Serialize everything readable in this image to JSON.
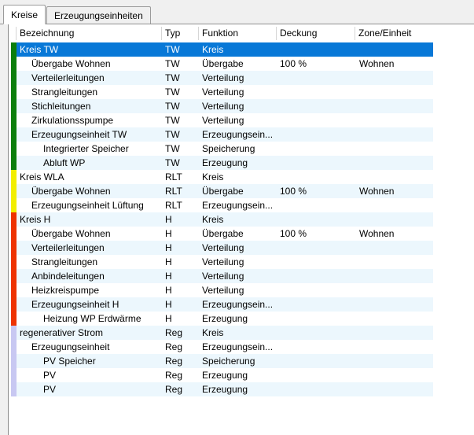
{
  "tabs": [
    {
      "label": "Kreise",
      "active": true
    },
    {
      "label": "Erzeugungseinheiten",
      "active": false
    }
  ],
  "table": {
    "columns": {
      "bezeichnung": "Bezeichnung",
      "typ": "Typ",
      "funktion": "Funktion",
      "deckung": "Deckung",
      "zone": "Zone/Einheit"
    },
    "rows": [
      {
        "bezeichnung": "Kreis TW",
        "typ": "TW",
        "funktion": "Kreis",
        "deckung": "",
        "zone": "",
        "level": 0,
        "group": "tw",
        "selected": true
      },
      {
        "bezeichnung": "Übergabe Wohnen",
        "typ": "TW",
        "funktion": "Übergabe",
        "deckung": "100 %",
        "zone": "Wohnen",
        "level": 1,
        "group": "tw"
      },
      {
        "bezeichnung": "Verteilerleitungen",
        "typ": "TW",
        "funktion": "Verteilung",
        "deckung": "",
        "zone": "",
        "level": 1,
        "group": "tw"
      },
      {
        "bezeichnung": "Strangleitungen",
        "typ": "TW",
        "funktion": "Verteilung",
        "deckung": "",
        "zone": "",
        "level": 1,
        "group": "tw"
      },
      {
        "bezeichnung": "Stichleitungen",
        "typ": "TW",
        "funktion": "Verteilung",
        "deckung": "",
        "zone": "",
        "level": 1,
        "group": "tw"
      },
      {
        "bezeichnung": "Zirkulationsspumpe",
        "typ": "TW",
        "funktion": "Verteilung",
        "deckung": "",
        "zone": "",
        "level": 1,
        "group": "tw"
      },
      {
        "bezeichnung": "Erzeugungseinheit TW",
        "typ": "TW",
        "funktion": "Erzeugungsein...",
        "deckung": "",
        "zone": "",
        "level": 1,
        "group": "tw"
      },
      {
        "bezeichnung": "Integrierter Speicher",
        "typ": "TW",
        "funktion": "Speicherung",
        "deckung": "",
        "zone": "",
        "level": 2,
        "group": "tw"
      },
      {
        "bezeichnung": "Abluft WP",
        "typ": "TW",
        "funktion": "Erzeugung",
        "deckung": "",
        "zone": "",
        "level": 2,
        "group": "tw"
      },
      {
        "bezeichnung": "Kreis WLA",
        "typ": "RLT",
        "funktion": "Kreis",
        "deckung": "",
        "zone": "",
        "level": 0,
        "group": "rlt"
      },
      {
        "bezeichnung": "Übergabe Wohnen",
        "typ": "RLT",
        "funktion": "Übergabe",
        "deckung": "100 %",
        "zone": "Wohnen",
        "level": 1,
        "group": "rlt"
      },
      {
        "bezeichnung": "Erzeugungseinheit Lüftung",
        "typ": "RLT",
        "funktion": "Erzeugungsein...",
        "deckung": "",
        "zone": "",
        "level": 1,
        "group": "rlt"
      },
      {
        "bezeichnung": "Kreis H",
        "typ": "H",
        "funktion": "Kreis",
        "deckung": "",
        "zone": "",
        "level": 0,
        "group": "h"
      },
      {
        "bezeichnung": "Übergabe Wohnen",
        "typ": "H",
        "funktion": "Übergabe",
        "deckung": "100 %",
        "zone": "Wohnen",
        "level": 1,
        "group": "h"
      },
      {
        "bezeichnung": "Verteilerleitungen",
        "typ": "H",
        "funktion": "Verteilung",
        "deckung": "",
        "zone": "",
        "level": 1,
        "group": "h"
      },
      {
        "bezeichnung": "Strangleitungen",
        "typ": "H",
        "funktion": "Verteilung",
        "deckung": "",
        "zone": "",
        "level": 1,
        "group": "h"
      },
      {
        "bezeichnung": "Anbindeleitungen",
        "typ": "H",
        "funktion": "Verteilung",
        "deckung": "",
        "zone": "",
        "level": 1,
        "group": "h"
      },
      {
        "bezeichnung": "Heizkreispumpe",
        "typ": "H",
        "funktion": "Verteilung",
        "deckung": "",
        "zone": "",
        "level": 1,
        "group": "h"
      },
      {
        "bezeichnung": "Erzeugungseinheit H",
        "typ": "H",
        "funktion": "Erzeugungsein...",
        "deckung": "",
        "zone": "",
        "level": 1,
        "group": "h"
      },
      {
        "bezeichnung": "Heizung WP Erdwärme",
        "typ": "H",
        "funktion": "Erzeugung",
        "deckung": "",
        "zone": "",
        "level": 2,
        "group": "h"
      },
      {
        "bezeichnung": "regenerativer Strom",
        "typ": "Reg",
        "funktion": "Kreis",
        "deckung": "",
        "zone": "",
        "level": 0,
        "group": "reg"
      },
      {
        "bezeichnung": "Erzeugungseinheit",
        "typ": "Reg",
        "funktion": "Erzeugungsein...",
        "deckung": "",
        "zone": "",
        "level": 1,
        "group": "reg"
      },
      {
        "bezeichnung": "PV Speicher",
        "typ": "Reg",
        "funktion": "Speicherung",
        "deckung": "",
        "zone": "",
        "level": 2,
        "group": "reg"
      },
      {
        "bezeichnung": "PV",
        "typ": "Reg",
        "funktion": "Erzeugung",
        "deckung": "",
        "zone": "",
        "level": 2,
        "group": "reg"
      },
      {
        "bezeichnung": "PV",
        "typ": "Reg",
        "funktion": "Erzeugung",
        "deckung": "",
        "zone": "",
        "level": 2,
        "group": "reg"
      }
    ]
  },
  "colors": {
    "group_tw": "#0c7e0c",
    "group_rlt": "#f2ee00",
    "group_h": "#ee3301",
    "group_reg": "#c8c8f2",
    "selection": "#0878d7",
    "stripe": "#ecf7fd"
  }
}
